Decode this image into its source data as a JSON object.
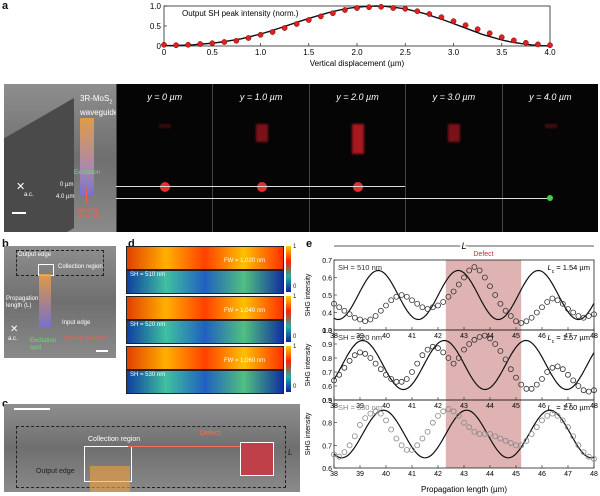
{
  "panel_letters": {
    "a": "a",
    "b": "b",
    "c": "c",
    "d": "d",
    "e": "e"
  },
  "panel_a": {
    "chart_data": {
      "type": "scatter",
      "title": "Output SH peak intensity (norm.)",
      "xlabel": "Vertical displacement (µm)",
      "xlim": [
        0,
        4.0
      ],
      "ylim": [
        0,
        1.0
      ],
      "xticks": [
        "0",
        "0.5",
        "1.0",
        "1.5",
        "2.0",
        "2.5",
        "3.0",
        "3.5",
        "4.0"
      ],
      "yticks": [
        "0",
        "0.5",
        "1.0"
      ],
      "series": [
        {
          "values_x": [
            0,
            0.1,
            0.2,
            0.3,
            0.4,
            0.5,
            0.6,
            0.7,
            0.8,
            0.9,
            1.0,
            1.1,
            1.2,
            1.3,
            1.4,
            1.5,
            1.6,
            1.7,
            1.8,
            1.9,
            2.0,
            2.1,
            2.2,
            2.3,
            2.4,
            2.5,
            2.6,
            2.7,
            2.8,
            2.9,
            3.0,
            3.1,
            3.2,
            3.3,
            3.4,
            3.5,
            3.6,
            3.7,
            3.8,
            3.9,
            4.0
          ],
          "values_y": [
            0.01,
            0.01,
            0.02,
            0.03,
            0.05,
            0.07,
            0.1,
            0.14,
            0.18,
            0.24,
            0.3,
            0.37,
            0.45,
            0.53,
            0.61,
            0.69,
            0.76,
            0.83,
            0.89,
            0.94,
            0.97,
            0.99,
            1.0,
            0.99,
            0.96,
            0.93,
            0.87,
            0.81,
            0.73,
            0.65,
            0.56,
            0.47,
            0.38,
            0.29,
            0.22,
            0.15,
            0.1,
            0.06,
            0.03,
            0.01,
            0.0
          ]
        },
        {
          "values_x": [
            0,
            0.125,
            0.25,
            0.375,
            0.5,
            0.625,
            0.75,
            0.875,
            1.0,
            1.125,
            1.25,
            1.375,
            1.5,
            1.625,
            1.75,
            1.875,
            2.0,
            2.125,
            2.25,
            2.375,
            2.5,
            2.625,
            2.75,
            2.875,
            3.0,
            3.125,
            3.25,
            3.375,
            3.5,
            3.625,
            3.75,
            3.875,
            4.0
          ],
          "values_y": [
            0.03,
            0.02,
            0.03,
            0.05,
            0.07,
            0.1,
            0.13,
            0.2,
            0.28,
            0.35,
            0.45,
            0.55,
            0.65,
            0.74,
            0.82,
            0.9,
            0.95,
            0.97,
            0.98,
            0.95,
            0.93,
            0.87,
            0.8,
            0.72,
            0.62,
            0.52,
            0.42,
            0.32,
            0.22,
            0.14,
            0.08,
            0.04,
            0.02
          ]
        }
      ]
    },
    "material_label": "3R-MoS",
    "material_sub": "2",
    "material_label2": "waveguide",
    "excitation_label": "Excitation",
    "y0_label": "0 µm",
    "y4_label": "4.0 µm",
    "ac_label": "a.c.",
    "moving_label": "Moving direction",
    "frames": [
      "y = 0 µm",
      "y = 1.0 µm",
      "y = 2.0 µm",
      "y = 3.0 µm",
      "y = 4.0 µm"
    ]
  },
  "panel_b": {
    "output_edge": "Output edge",
    "collection": "Collection region",
    "propagation": "Propagation length (L)",
    "input_edge": "Input edge",
    "ac": "a.c.",
    "excitation": "Excitation spot",
    "moving": "Moving direction"
  },
  "panel_c": {
    "collection": "Collection region",
    "output_edge": "Output edge",
    "defect": "Defect",
    "L": "L"
  },
  "panel_d": {
    "rows": [
      {
        "fw": "FW = 1,020 nm",
        "sh": "SH = 510 nm"
      },
      {
        "fw": "FW = 1,040 nm",
        "sh": "SH = 520 nm"
      },
      {
        "fw": "FW = 1,060 nm",
        "sh": "SH = 530 nm"
      }
    ],
    "cb_top": "1",
    "cb_bottom": "0"
  },
  "panel_e": {
    "L_label": "L",
    "defect": "Defect",
    "xlabel": "Propagation length (µm)",
    "ylabel": "SHG intensity",
    "xticks": [
      "38",
      "39",
      "40",
      "41",
      "42",
      "43",
      "44",
      "45",
      "46",
      "47",
      "48"
    ],
    "chart_data": [
      {
        "type": "scatter",
        "sh": "SH = 510 nm",
        "lc": "L",
        "lc_sub": "c",
        "lc_val": " = 1.54 µm",
        "ylim": [
          0.3,
          0.7
        ],
        "yticks": [
          "0.3",
          "0.4",
          "0.5",
          "0.6",
          "0.7"
        ],
        "color": "#333333",
        "points_x": [
          38.0,
          38.2,
          38.4,
          38.6,
          38.8,
          39.0,
          39.2,
          39.4,
          39.6,
          39.8,
          40.0,
          40.2,
          40.4,
          40.6,
          40.8,
          41.0,
          41.2,
          41.4,
          41.6,
          41.8,
          42.0,
          42.2,
          42.4,
          42.6,
          42.8,
          43.0,
          43.2,
          43.4,
          43.6,
          43.8,
          44.0,
          44.2,
          44.4,
          44.6,
          44.8,
          45.0,
          45.2,
          45.4,
          45.6,
          45.8,
          46.0,
          46.2,
          46.4,
          46.6,
          46.8,
          47.0,
          47.2,
          47.4,
          47.6,
          47.8,
          48.0
        ],
        "points_y": [
          0.45,
          0.43,
          0.41,
          0.39,
          0.37,
          0.36,
          0.35,
          0.36,
          0.38,
          0.41,
          0.44,
          0.47,
          0.49,
          0.5,
          0.49,
          0.47,
          0.45,
          0.43,
          0.42,
          0.43,
          0.44,
          0.46,
          0.49,
          0.52,
          0.56,
          0.6,
          0.64,
          0.66,
          0.64,
          0.6,
          0.55,
          0.5,
          0.45,
          0.41,
          0.38,
          0.35,
          0.34,
          0.35,
          0.37,
          0.4,
          0.43,
          0.46,
          0.48,
          0.47,
          0.45,
          0.42,
          0.4,
          0.38,
          0.37,
          0.38,
          0.39
        ]
      },
      {
        "type": "scatter",
        "sh": "SH = 520 nm",
        "lc": "L",
        "lc_sub": "c",
        "lc_val": " = 1.57 µm",
        "ylim": [
          0.5,
          1.0
        ],
        "yticks": [
          "0.5",
          "0.6",
          "0.7",
          "0.8",
          "0.9",
          "1.0"
        ],
        "color": "#333333",
        "points_x": [
          38.0,
          38.2,
          38.4,
          38.6,
          38.8,
          39.0,
          39.2,
          39.4,
          39.6,
          39.8,
          40.0,
          40.2,
          40.4,
          40.6,
          40.8,
          41.0,
          41.2,
          41.4,
          41.6,
          41.8,
          42.0,
          42.2,
          42.4,
          42.6,
          42.8,
          43.0,
          43.2,
          43.4,
          43.6,
          43.8,
          44.0,
          44.2,
          44.4,
          44.6,
          44.8,
          45.0,
          45.2,
          45.4,
          45.6,
          45.8,
          46.0,
          46.2,
          46.4,
          46.6,
          46.8,
          47.0,
          47.2,
          47.4,
          47.6,
          47.8,
          48.0
        ],
        "points_y": [
          0.64,
          0.68,
          0.73,
          0.78,
          0.82,
          0.84,
          0.83,
          0.8,
          0.76,
          0.72,
          0.68,
          0.65,
          0.63,
          0.63,
          0.65,
          0.7,
          0.76,
          0.82,
          0.86,
          0.88,
          0.87,
          0.84,
          0.8,
          0.76,
          0.8,
          0.86,
          0.9,
          0.93,
          0.95,
          0.96,
          0.94,
          0.9,
          0.85,
          0.79,
          0.72,
          0.66,
          0.61,
          0.58,
          0.58,
          0.61,
          0.65,
          0.7,
          0.73,
          0.74,
          0.72,
          0.68,
          0.64,
          0.6,
          0.57,
          0.56,
          0.57
        ]
      },
      {
        "type": "scatter",
        "sh": "SH = 530 nm",
        "lc": "L",
        "lc_sub": "c",
        "lc_val": " = 1.60 µm",
        "ylim": [
          0.6,
          0.9
        ],
        "yticks": [
          "0.6",
          "0.7",
          "0.8",
          "0.9"
        ],
        "color": "#888888",
        "points_x": [
          38.0,
          38.2,
          38.4,
          38.6,
          38.8,
          39.0,
          39.2,
          39.4,
          39.6,
          39.8,
          40.0,
          40.2,
          40.4,
          40.6,
          40.8,
          41.0,
          41.2,
          41.4,
          41.6,
          41.8,
          42.0,
          42.2,
          42.4,
          42.6,
          42.8,
          43.0,
          43.2,
          43.4,
          43.6,
          43.8,
          44.0,
          44.2,
          44.4,
          44.6,
          44.8,
          45.0,
          45.2,
          45.4,
          45.6,
          45.8,
          46.0,
          46.2,
          46.4,
          46.6,
          46.8,
          47.0,
          47.2,
          47.4,
          47.6,
          47.8,
          48.0
        ],
        "points_y": [
          0.66,
          0.65,
          0.67,
          0.7,
          0.74,
          0.79,
          0.82,
          0.84,
          0.85,
          0.84,
          0.81,
          0.77,
          0.73,
          0.7,
          0.68,
          0.68,
          0.7,
          0.73,
          0.76,
          0.8,
          0.83,
          0.85,
          0.86,
          0.85,
          0.83,
          0.8,
          0.78,
          0.76,
          0.75,
          0.75,
          0.75,
          0.74,
          0.73,
          0.72,
          0.71,
          0.7,
          0.7,
          0.72,
          0.75,
          0.78,
          0.81,
          0.83,
          0.84,
          0.83,
          0.81,
          0.78,
          0.74,
          0.7,
          0.67,
          0.65,
          0.64
        ]
      }
    ]
  }
}
